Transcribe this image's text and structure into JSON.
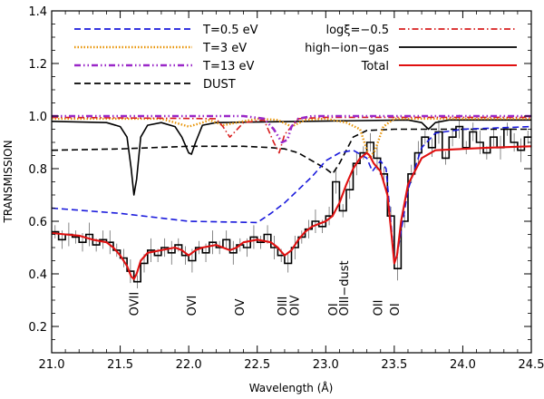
{
  "chart_data": {
    "type": "line",
    "xlabel": "Wavelength (Å)",
    "ylabel": "TRANSMISSION",
    "xlim": [
      21.0,
      24.5
    ],
    "ylim": [
      0.1,
      1.4
    ],
    "xticks": [
      "21.0",
      "21.5",
      "22.0",
      "22.5",
      "23.0",
      "23.5",
      "24.0",
      "24.5"
    ],
    "yticks": [
      "0.2",
      "0.4",
      "0.6",
      "0.8",
      "1.0",
      "1.2",
      "1.4"
    ],
    "grid": false,
    "legend_placement": "top",
    "legend_left": [
      {
        "label": "T=0.5 eV",
        "series": "T=0.5 eV"
      },
      {
        "label": "T=3 eV",
        "series": "T=3 eV"
      },
      {
        "label": "T=13 eV",
        "series": "T=13 eV"
      },
      {
        "label": "DUST",
        "series": "DUST"
      }
    ],
    "legend_right": [
      {
        "label": "logξ=−0.5",
        "series": "logξ=−0.5"
      },
      {
        "label": "high−ion−gas",
        "series": "high−ion−gas"
      },
      {
        "label": "Total",
        "series": "Total"
      }
    ],
    "annotations": [
      {
        "text": "OVII",
        "x": 21.6,
        "y": 0.24
      },
      {
        "text": "OVI",
        "x": 22.02,
        "y": 0.24
      },
      {
        "text": "OV",
        "x": 22.37,
        "y": 0.24
      },
      {
        "text": "OIV",
        "x": 22.77,
        "y": 0.24
      },
      {
        "text": "OIII",
        "x": 22.68,
        "y": 0.24
      },
      {
        "text": "OI",
        "x": 23.05,
        "y": 0.24
      },
      {
        "text": "OIII−dust",
        "x": 23.13,
        "y": 0.24
      },
      {
        "text": "OII",
        "x": 23.38,
        "y": 0.24
      },
      {
        "text": "OI",
        "x": 23.5,
        "y": 0.24
      }
    ],
    "series": [
      {
        "name": "T=0.5 eV",
        "color": "#1a1adc",
        "style": "dashed",
        "x": [
          21.0,
          21.5,
          22.0,
          22.5,
          22.6,
          22.7,
          22.8,
          22.9,
          23.0,
          23.1,
          23.2,
          23.3,
          23.34,
          23.4,
          23.44,
          23.5,
          23.52,
          23.6,
          23.7,
          23.8,
          24.0,
          24.5
        ],
        "y": [
          0.65,
          0.63,
          0.6,
          0.595,
          0.63,
          0.67,
          0.72,
          0.77,
          0.83,
          0.86,
          0.87,
          0.84,
          0.79,
          0.83,
          0.8,
          0.45,
          0.47,
          0.72,
          0.88,
          0.935,
          0.95,
          0.96
        ]
      },
      {
        "name": "T=3 eV",
        "color": "#e8950a",
        "style": "dotted",
        "x": [
          21.0,
          21.8,
          21.9,
          22.0,
          22.1,
          22.15,
          22.25,
          22.35,
          22.5,
          22.65,
          22.75,
          22.85,
          23.0,
          23.15,
          23.25,
          23.32,
          23.36,
          23.42,
          23.5,
          24.0,
          24.5
        ],
        "y": [
          0.99,
          0.99,
          0.975,
          0.96,
          0.975,
          0.985,
          0.965,
          0.975,
          0.99,
          0.985,
          0.96,
          0.985,
          0.99,
          0.975,
          0.95,
          0.84,
          0.87,
          0.96,
          0.99,
          0.99,
          0.99
        ]
      },
      {
        "name": "T=13 eV",
        "color": "#9a28c8",
        "style": "dashdotdot",
        "x": [
          21.0,
          22.4,
          22.55,
          22.62,
          22.68,
          22.72,
          22.75,
          22.8,
          22.9,
          23.0,
          24.5
        ],
        "y": [
          1.0,
          1.0,
          0.99,
          0.95,
          0.9,
          0.91,
          0.96,
          0.99,
          1.0,
          1.0,
          1.0
        ]
      },
      {
        "name": "DUST",
        "color": "#000000",
        "style": "dashed",
        "x": [
          21.0,
          21.5,
          22.0,
          22.4,
          22.6,
          22.7,
          22.8,
          22.9,
          23.0,
          23.05,
          23.1,
          23.2,
          23.3,
          23.5,
          24.0,
          24.5
        ],
        "y": [
          0.87,
          0.875,
          0.885,
          0.885,
          0.88,
          0.875,
          0.86,
          0.83,
          0.8,
          0.78,
          0.82,
          0.92,
          0.945,
          0.95,
          0.95,
          0.95
        ]
      },
      {
        "name": "logξ=−0.5",
        "color": "#d81e1e",
        "style": "dashdot",
        "x": [
          21.0,
          22.2,
          22.25,
          22.3,
          22.4,
          22.55,
          22.62,
          22.66,
          22.7,
          22.8,
          23.0,
          24.5
        ],
        "y": [
          0.995,
          0.99,
          0.96,
          0.92,
          0.975,
          0.985,
          0.9,
          0.86,
          0.93,
          0.99,
          0.995,
          0.995
        ]
      },
      {
        "name": "high−ion−gas",
        "color": "#000000",
        "style": "solid",
        "x": [
          21.0,
          21.4,
          21.5,
          21.55,
          21.58,
          21.6,
          21.62,
          21.65,
          21.7,
          21.8,
          21.9,
          21.95,
          22.0,
          22.02,
          22.05,
          22.1,
          22.2,
          23.6,
          23.7,
          23.75,
          23.8,
          23.9,
          24.5
        ],
        "y": [
          0.98,
          0.975,
          0.96,
          0.92,
          0.8,
          0.7,
          0.76,
          0.92,
          0.965,
          0.975,
          0.96,
          0.92,
          0.86,
          0.855,
          0.9,
          0.965,
          0.975,
          0.985,
          0.975,
          0.95,
          0.975,
          0.985,
          0.985
        ]
      },
      {
        "name": "Total",
        "color": "#e01010",
        "style": "solid",
        "x": [
          21.0,
          21.1,
          21.2,
          21.3,
          21.4,
          21.45,
          21.5,
          21.55,
          21.58,
          21.6,
          21.62,
          21.65,
          21.7,
          21.8,
          21.9,
          21.95,
          22.0,
          22.05,
          22.1,
          22.2,
          22.25,
          22.3,
          22.35,
          22.4,
          22.5,
          22.6,
          22.65,
          22.7,
          22.75,
          22.8,
          22.85,
          22.9,
          22.95,
          23.0,
          23.05,
          23.1,
          23.15,
          23.2,
          23.25,
          23.3,
          23.32,
          23.35,
          23.4,
          23.45,
          23.48,
          23.5,
          23.52,
          23.55,
          23.6,
          23.7,
          23.8,
          24.0,
          24.2,
          24.5
        ],
        "y": [
          0.555,
          0.55,
          0.545,
          0.53,
          0.52,
          0.5,
          0.47,
          0.43,
          0.39,
          0.38,
          0.4,
          0.45,
          0.48,
          0.49,
          0.5,
          0.49,
          0.47,
          0.49,
          0.5,
          0.51,
          0.5,
          0.49,
          0.5,
          0.52,
          0.53,
          0.52,
          0.5,
          0.47,
          0.49,
          0.53,
          0.56,
          0.58,
          0.59,
          0.6,
          0.62,
          0.67,
          0.74,
          0.8,
          0.84,
          0.86,
          0.85,
          0.82,
          0.79,
          0.7,
          0.55,
          0.44,
          0.47,
          0.6,
          0.74,
          0.84,
          0.87,
          0.875,
          0.88,
          0.885
        ]
      },
      {
        "name": "data",
        "color": "#000000",
        "style": "steps",
        "x": [
          21.0,
          21.05,
          21.1,
          21.15,
          21.2,
          21.25,
          21.3,
          21.35,
          21.4,
          21.45,
          21.5,
          21.55,
          21.6,
          21.65,
          21.7,
          21.75,
          21.8,
          21.85,
          21.9,
          21.95,
          22.0,
          22.05,
          22.1,
          22.15,
          22.2,
          22.25,
          22.3,
          22.35,
          22.4,
          22.45,
          22.5,
          22.55,
          22.6,
          22.65,
          22.7,
          22.75,
          22.8,
          22.85,
          22.9,
          22.95,
          23.0,
          23.05,
          23.1,
          23.15,
          23.2,
          23.25,
          23.3,
          23.35,
          23.4,
          23.45,
          23.5,
          23.55,
          23.6,
          23.65,
          23.7,
          23.75,
          23.8,
          23.85,
          23.9,
          23.95,
          24.0,
          24.05,
          24.1,
          24.15,
          24.2,
          24.25,
          24.3,
          24.35,
          24.4,
          24.45
        ],
        "y": [
          0.56,
          0.53,
          0.55,
          0.54,
          0.52,
          0.55,
          0.51,
          0.53,
          0.52,
          0.49,
          0.46,
          0.41,
          0.37,
          0.44,
          0.49,
          0.47,
          0.5,
          0.48,
          0.51,
          0.47,
          0.45,
          0.5,
          0.48,
          0.52,
          0.5,
          0.53,
          0.48,
          0.51,
          0.5,
          0.54,
          0.52,
          0.55,
          0.5,
          0.47,
          0.44,
          0.5,
          0.54,
          0.57,
          0.6,
          0.58,
          0.62,
          0.75,
          0.64,
          0.72,
          0.82,
          0.86,
          0.9,
          0.84,
          0.78,
          0.62,
          0.42,
          0.6,
          0.78,
          0.86,
          0.92,
          0.88,
          0.94,
          0.84,
          0.92,
          0.96,
          0.88,
          0.94,
          0.9,
          0.86,
          0.92,
          0.88,
          0.95,
          0.9,
          0.87,
          0.92
        ]
      }
    ]
  }
}
